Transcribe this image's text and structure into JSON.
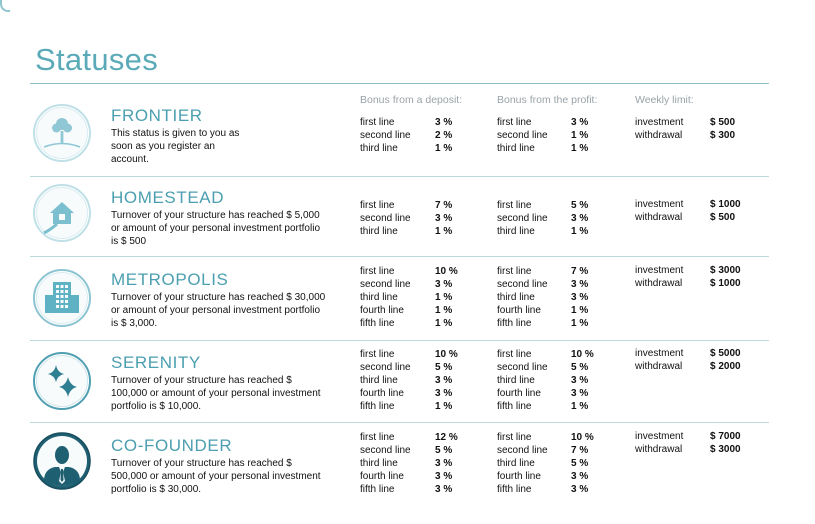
{
  "title": "Statuses",
  "headers": {
    "deposit": "Bonus from a deposit:",
    "profit": "Bonus from the profit:",
    "weekly": "Weekly limit:"
  },
  "line_labels": [
    "first line",
    "second line",
    "third line",
    "fourth line",
    "fifth line"
  ],
  "limit_labels": {
    "investment": "investment",
    "withdrawal": "withdrawal"
  },
  "statuses": [
    {
      "name": "FRONTIER",
      "icon": "tree-icon",
      "description": "This status is given to you as soon as you register an account.",
      "deposit": [
        "3 %",
        "2 %",
        "1 %"
      ],
      "profit": [
        "3 %",
        "1 %",
        "1 %"
      ],
      "investment": "$ 500",
      "withdrawal": "$ 300"
    },
    {
      "name": "HOMESTEAD",
      "icon": "house-icon",
      "description": "Turnover of your structure has reached $ 5,000 or amount of your personal investment portfolio is $ 500",
      "deposit": [
        "7 %",
        "3 %",
        "1 %"
      ],
      "profit": [
        "5 %",
        "3 %",
        "1 %"
      ],
      "investment": "$ 1000",
      "withdrawal": "$ 500"
    },
    {
      "name": "METROPOLIS",
      "icon": "building-icon",
      "description": "Turnover of your structure has reached $ 30,000 or amount of your personal investment portfolio is $ 3,000.",
      "deposit": [
        "10 %",
        "3 %",
        "1 %",
        "1 %",
        "1 %"
      ],
      "profit": [
        "7 %",
        "3 %",
        "3 %",
        "1 %",
        "1 %"
      ],
      "investment": "$ 3000",
      "withdrawal": "$ 1000"
    },
    {
      "name": "SERENITY",
      "icon": "sparkle-icon",
      "description": "Turnover of your structure has reached $ 100,000 or amount of your personal investment portfolio is $ 10,000.",
      "deposit": [
        "10 %",
        "5 %",
        "3 %",
        "3 %",
        "1 %"
      ],
      "profit": [
        "10 %",
        "5 %",
        "3 %",
        "3 %",
        "1 %"
      ],
      "investment": "$ 5000",
      "withdrawal": "$ 2000"
    },
    {
      "name": "CO-FOUNDER",
      "icon": "businessman-icon",
      "description": "Turnover of your structure has reached $ 500,000 or amount of your personal investment portfolio is $ 30,000.",
      "deposit": [
        "12 %",
        "5 %",
        "3 %",
        "3 %",
        "3 %"
      ],
      "profit": [
        "10 %",
        "7 %",
        "5 %",
        "3 %",
        "3 %"
      ],
      "investment": "$ 7000",
      "withdrawal": "$ 3000"
    }
  ]
}
